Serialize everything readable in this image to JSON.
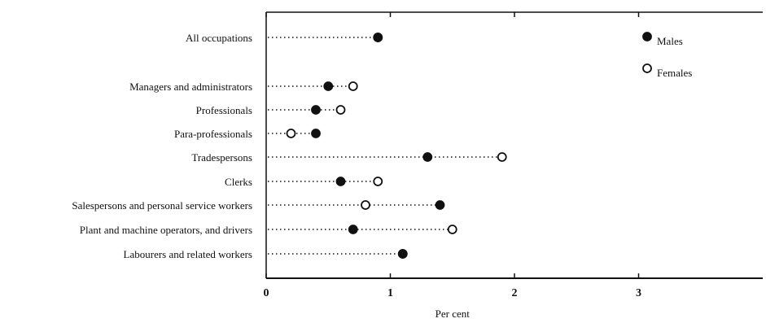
{
  "chart_data": {
    "type": "dot",
    "xlabel": "Per cent",
    "ylabel": "",
    "xlim": [
      0,
      4
    ],
    "x_ticks": [
      0,
      1,
      2,
      3
    ],
    "x_tick_labels": [
      "0",
      "1",
      "2",
      "3"
    ],
    "grid": false,
    "legend_position": "top-right",
    "categories": [
      "All occupations",
      "Managers and administrators",
      "Professionals",
      "Para-professionals",
      "Tradespersons",
      "Clerks",
      "Salespersons and personal service workers",
      "Plant and machine operators, and drivers",
      "Labourers and related workers"
    ],
    "series": [
      {
        "name": "Males",
        "marker": "filled-circle",
        "values": [
          0.9,
          0.5,
          0.4,
          0.4,
          1.3,
          0.6,
          1.4,
          0.7,
          1.1
        ]
      },
      {
        "name": "Females",
        "marker": "open-circle",
        "values": [
          0.9,
          0.7,
          0.6,
          0.2,
          1.9,
          0.9,
          0.8,
          1.5,
          1.1
        ]
      }
    ]
  },
  "colors": {
    "ink": "#111111",
    "background": "#ffffff"
  }
}
